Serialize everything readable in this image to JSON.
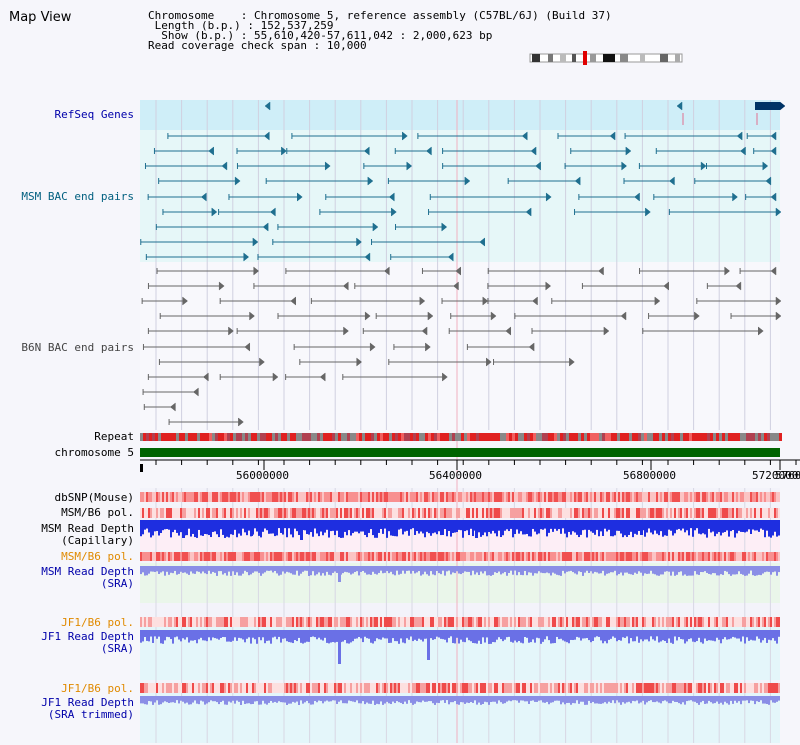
{
  "page": {
    "title": "Map View"
  },
  "info": {
    "chromosome_label": "Chromosome",
    "chromosome_value": "Chromosome 5, reference assembly (C57BL/6J) (Build 37)",
    "length_label": "Length (b.p.)",
    "length_value": "152,537,259",
    "show_label": "Show (b.p.)",
    "show_value": "55,610,420-57,611,042 : 2,000,623 bp",
    "coverage_label": "Read coverage check span",
    "coverage_value": "10,000"
  },
  "tracks": {
    "refseq": "RefSeq Genes",
    "msm_bac": "MSM BAC end pairs",
    "b6n_bac": "B6N BAC end pairs",
    "repeat": "Repeat",
    "chromosome": "chromosome 5",
    "dbsnp": "dbSNP(Mouse)",
    "msm_b6_pol_1": "MSM/B6 pol.",
    "msm_depth_cap_1": "MSM Read Depth",
    "msm_depth_cap_2": "(Capillary)",
    "msm_b6_pol_2": "MSM/B6 pol.",
    "msm_depth_sra_1": "MSM Read Depth",
    "msm_depth_sra_2": "(SRA)",
    "jf1_pol_1": "JF1/B6 pol.",
    "jf1_depth_sra_1": "JF1 Read Depth",
    "jf1_depth_sra_2": "(SRA)",
    "jf1_pol_2": "JF1/B6 pol.",
    "jf1_depth_trim_1": "JF1 Read Depth",
    "jf1_depth_trim_2": "(SRA trimmed)"
  },
  "axis": {
    "ticks": [
      "56000000",
      "56400000",
      "56800000",
      "57200000",
      "5760"
    ]
  },
  "colors": {
    "gene_blue": "#1f6f8f",
    "bac_gray": "#666666",
    "chrom_green": "#006400",
    "depth_blue": "#1e2ee0",
    "depth_light": "#8a8ee6",
    "pol_orange": "#e08a00",
    "label_blue": "#0000aa",
    "label_teal": "#005f7f"
  }
}
